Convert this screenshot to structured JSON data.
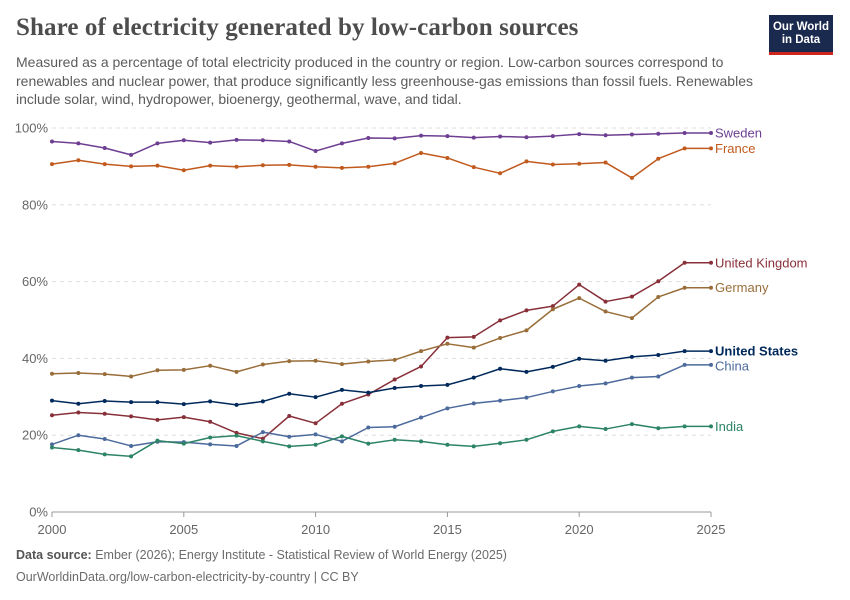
{
  "title": "Share of electricity generated by low-carbon sources",
  "subtitle": "Measured as a percentage of total electricity produced in the country or region. Low-carbon sources correspond to renewables and nuclear power, that produce significantly less greenhouse-gas emissions than fossil fuels. Renewables include solar, wind, hydropower, bioenergy, geothermal, wave, and tidal.",
  "logo": {
    "line1": "Our World",
    "line2": "in Data"
  },
  "footer": {
    "source_label": "Data source:",
    "source_text": "Ember (2026); Energy Institute - Statistical Review of World Energy (2025)",
    "url": "OurWorldinData.org/low-carbon-electricity-by-country | CC BY"
  },
  "chart_data": {
    "type": "line",
    "xlim": [
      2000,
      2025
    ],
    "ylim": [
      0,
      100
    ],
    "x_ticks": [
      2000,
      2005,
      2010,
      2015,
      2020,
      2025
    ],
    "y_ticks": [
      0,
      20,
      40,
      60,
      80,
      100
    ],
    "y_tick_labels": [
      "0%",
      "20%",
      "40%",
      "60%",
      "80%",
      "100%"
    ],
    "grid": "horizontal dashed",
    "legend": "line-end labels",
    "x": [
      2000,
      2001,
      2002,
      2003,
      2004,
      2005,
      2006,
      2007,
      2008,
      2009,
      2010,
      2011,
      2012,
      2013,
      2014,
      2015,
      2016,
      2017,
      2018,
      2019,
      2020,
      2021,
      2022,
      2023,
      2024
    ],
    "series": [
      {
        "name": "Sweden",
        "color": "#6d3e91",
        "values": [
          96.5,
          96.0,
          94.8,
          93.0,
          96.0,
          96.8,
          96.2,
          96.9,
          96.8,
          96.5,
          94.0,
          96.0,
          97.4,
          97.3,
          98.0,
          97.9,
          97.5,
          97.8,
          97.6,
          97.9,
          98.4,
          98.1,
          98.3,
          98.5,
          98.7
        ]
      },
      {
        "name": "France",
        "color": "#c15a1d",
        "values": [
          90.6,
          91.6,
          90.6,
          90.0,
          90.2,
          89.0,
          90.2,
          89.9,
          90.3,
          90.4,
          89.9,
          89.6,
          89.9,
          90.8,
          93.5,
          92.2,
          89.8,
          88.2,
          91.3,
          90.5,
          90.7,
          91.0,
          87.0,
          92.0,
          94.7
        ]
      },
      {
        "name": "United Kingdom",
        "color": "#883039",
        "values": [
          25.2,
          25.9,
          25.6,
          24.9,
          24.0,
          24.7,
          23.5,
          20.6,
          19.1,
          25.0,
          23.1,
          28.2,
          30.6,
          34.5,
          37.9,
          45.4,
          45.6,
          49.9,
          52.5,
          53.6,
          59.2,
          54.8,
          56.1,
          60.1,
          64.9
        ]
      },
      {
        "name": "Germany",
        "color": "#996d39",
        "values": [
          36.0,
          36.2,
          35.9,
          35.3,
          36.9,
          37.0,
          38.1,
          36.5,
          38.4,
          39.3,
          39.4,
          38.5,
          39.2,
          39.6,
          41.9,
          43.8,
          42.8,
          45.3,
          47.3,
          52.8,
          55.7,
          52.2,
          50.5,
          56.0,
          58.4
        ]
      },
      {
        "name": "United States",
        "color": "#00295b",
        "values": [
          29.0,
          28.2,
          28.9,
          28.6,
          28.6,
          28.1,
          28.8,
          27.9,
          28.8,
          30.8,
          29.9,
          31.8,
          31.1,
          32.3,
          32.8,
          33.1,
          35.0,
          37.3,
          36.5,
          37.8,
          39.9,
          39.4,
          40.4,
          40.9,
          41.9
        ]
      },
      {
        "name": "China",
        "color": "#4c6a9c",
        "values": [
          17.6,
          20.0,
          19.0,
          17.2,
          18.3,
          18.2,
          17.6,
          17.2,
          20.8,
          19.6,
          20.2,
          18.4,
          22.0,
          22.2,
          24.6,
          27.0,
          28.3,
          29.0,
          29.8,
          31.4,
          32.8,
          33.5,
          35.0,
          35.3,
          38.3
        ]
      },
      {
        "name": "India",
        "color": "#2c8465",
        "values": [
          16.8,
          16.1,
          15.0,
          14.5,
          18.6,
          17.8,
          19.4,
          19.9,
          18.4,
          17.1,
          17.5,
          19.7,
          17.8,
          18.8,
          18.4,
          17.5,
          17.1,
          17.9,
          18.8,
          21.0,
          22.3,
          21.6,
          22.9,
          21.8,
          22.3
        ]
      }
    ]
  }
}
